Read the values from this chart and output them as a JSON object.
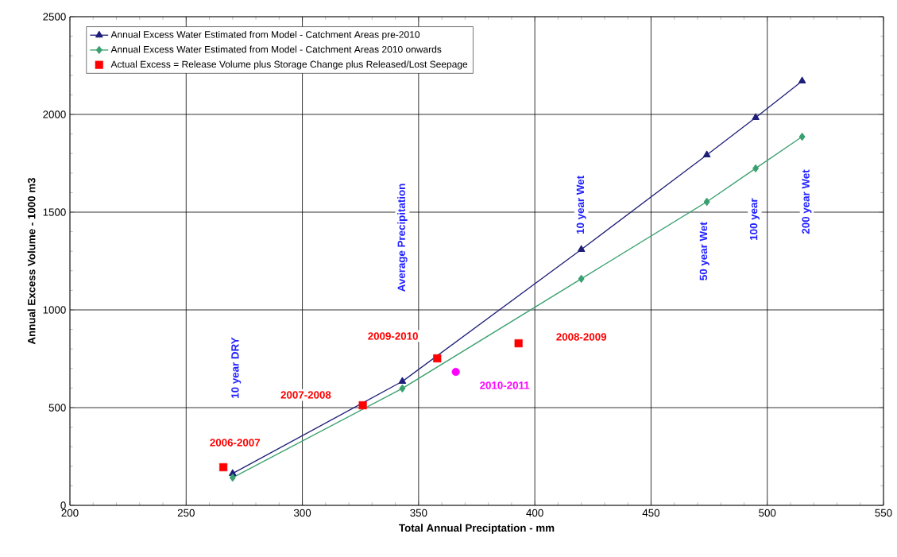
{
  "chart_data": {
    "type": "line",
    "xlabel": "Total Annual Preciptation - mm",
    "ylabel": "Annual Excess Volume - 1000 m3",
    "xlim": [
      200,
      550
    ],
    "xticks": [
      200,
      250,
      300,
      350,
      400,
      450,
      500,
      550
    ],
    "ylim": [
      0,
      2500
    ],
    "yticks": [
      0,
      500,
      1000,
      1500,
      2000,
      2500
    ],
    "grid": true,
    "legend": "top left",
    "series": [
      {
        "name": "Annual Excess Water Estimated from Model - Catchment Areas pre-2010",
        "color": "#1f1f7a",
        "marker": "triangle",
        "x": [
          270,
          343,
          420,
          474,
          495,
          515
        ],
        "values": [
          163,
          634,
          1309,
          1793,
          1984,
          2171
        ]
      },
      {
        "name": "Annual Excess Water Estimated from Model - Catchment Areas 2010 onwards",
        "color": "#3aa070",
        "marker": "diamond",
        "x": [
          270,
          343,
          420,
          474,
          495,
          515
        ],
        "values": [
          142,
          598,
          1159,
          1553,
          1724,
          1886
        ]
      },
      {
        "name": "Actual Excess = Release Volume plus Storage Change plus Released/Lost Seepage",
        "type": "scatter",
        "color": "#ff0000",
        "marker": "square",
        "x": [
          266,
          326,
          358,
          393
        ],
        "values": [
          195,
          512,
          752,
          829
        ]
      },
      {
        "type": "scatter",
        "color": "#ff00ff",
        "marker": "circle",
        "x": [
          366
        ],
        "values": [
          683
        ]
      }
    ],
    "annotations": [
      "10 year DRY",
      "Average Precipitation",
      "10 year Wet",
      "50 year Wet",
      "100 year",
      "200 year Wet",
      "2006-2007",
      "2007-2008",
      "2009-2010",
      "2008-2009",
      "2010-2011"
    ]
  }
}
